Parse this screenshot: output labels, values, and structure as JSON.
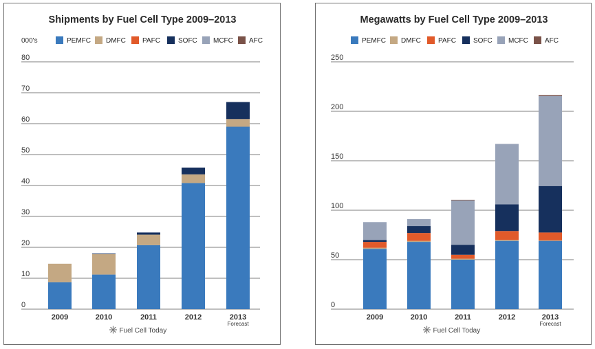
{
  "colors": {
    "PEMFC": "#3a7abd",
    "DMFC": "#c4a883",
    "PAFC": "#e15a2a",
    "SOFC": "#16305d",
    "MCFC": "#98a3b8",
    "AFC": "#7a5248"
  },
  "chart_data": [
    {
      "type": "bar",
      "stacked": true,
      "title": "Shipments by Fuel Cell Type 2009–2013",
      "ylabel": "000's",
      "categories": [
        "2009",
        "2010",
        "2011",
        "2012",
        "2013"
      ],
      "category_note": {
        "index": 4,
        "text": "Forecast"
      },
      "ylim": [
        0,
        80
      ],
      "yticks": [
        0,
        10,
        20,
        30,
        40,
        50,
        60,
        70,
        80
      ],
      "legend": [
        "PEMFC",
        "DMFC",
        "PAFC",
        "SOFC",
        "MCFC",
        "AFC"
      ],
      "series": [
        {
          "name": "PEMFC",
          "values": [
            8.7,
            11.2,
            20.7,
            40.8,
            59.0
          ]
        },
        {
          "name": "DMFC",
          "values": [
            6.0,
            6.6,
            3.4,
            2.8,
            2.5
          ]
        },
        {
          "name": "PAFC",
          "values": [
            0,
            0,
            0,
            0,
            0
          ]
        },
        {
          "name": "SOFC",
          "values": [
            0,
            0.2,
            0.7,
            2.2,
            5.5
          ]
        },
        {
          "name": "MCFC",
          "values": [
            0,
            0,
            0,
            0,
            0
          ]
        },
        {
          "name": "AFC",
          "values": [
            0,
            0,
            0,
            0,
            0
          ]
        }
      ],
      "credit": "Fuel Cell Today"
    },
    {
      "type": "bar",
      "stacked": true,
      "title": "Megawatts by Fuel Cell Type 2009–2013",
      "ylabel": "",
      "categories": [
        "2009",
        "2010",
        "2011",
        "2012",
        "2013"
      ],
      "category_note": {
        "index": 4,
        "text": "Forecast"
      },
      "ylim": [
        0,
        250
      ],
      "yticks": [
        0,
        50,
        100,
        150,
        200,
        250
      ],
      "legend": [
        "PEMFC",
        "DMFC",
        "PAFC",
        "SOFC",
        "MCFC",
        "AFC"
      ],
      "series": [
        {
          "name": "PEMFC",
          "values": [
            61,
            68,
            50,
            69,
            69
          ]
        },
        {
          "name": "DMFC",
          "values": [
            1,
            1,
            1,
            1,
            0.5
          ]
        },
        {
          "name": "PAFC",
          "values": [
            6,
            8,
            4,
            9,
            8
          ]
        },
        {
          "name": "SOFC",
          "values": [
            2,
            7,
            10,
            27,
            47
          ]
        },
        {
          "name": "MCFC",
          "values": [
            18,
            7,
            45,
            61,
            91
          ]
        },
        {
          "name": "AFC",
          "values": [
            0,
            0,
            0.5,
            0,
            1
          ]
        }
      ],
      "credit": "Fuel Cell Today"
    }
  ]
}
